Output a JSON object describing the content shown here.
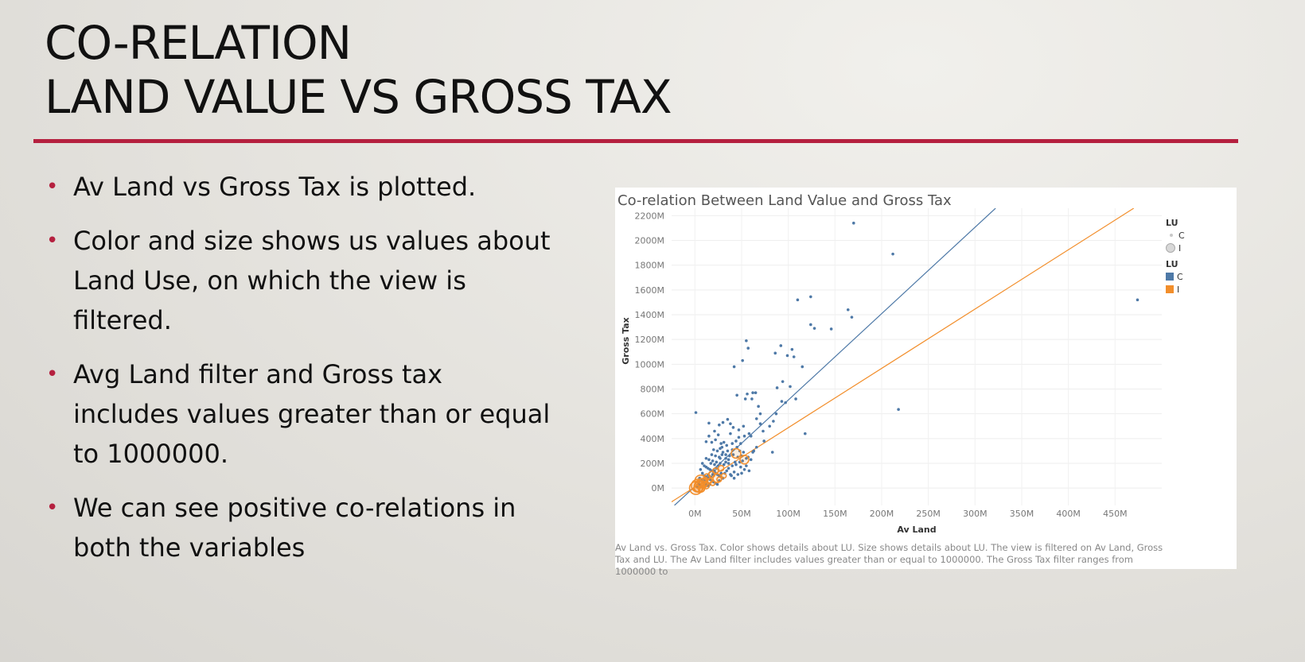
{
  "slide": {
    "title_line1": "CO-RELATION",
    "title_line2": "LAND VALUE  VS GROSS TAX",
    "accent_color": "#b5203f"
  },
  "bullets": [
    "Av Land vs Gross Tax is plotted.",
    "Color and size shows us values about Land Use, on which the view is filtered.",
    "Avg Land filter and Gross tax includes values greater than or equal to 1000000.",
    "We can see positive co-relations in both the variables"
  ],
  "chart_data": {
    "type": "scatter",
    "title": "Co-relation Between Land Value and Gross Tax",
    "xlabel": "Av Land",
    "ylabel": "Gross Tax",
    "xlim": [
      -25,
      500
    ],
    "ylim": [
      -140,
      2260
    ],
    "x_ticks": [
      "0M",
      "50M",
      "100M",
      "150M",
      "200M",
      "250M",
      "300M",
      "350M",
      "400M",
      "450M"
    ],
    "x_tick_values": [
      0,
      50,
      100,
      150,
      200,
      250,
      300,
      350,
      400,
      450
    ],
    "y_ticks": [
      "2200M",
      "2000M",
      "1800M",
      "1600M",
      "1400M",
      "1200M",
      "1000M",
      "800M",
      "600M",
      "400M",
      "200M",
      "0M"
    ],
    "y_tick_values": [
      2200,
      2000,
      1800,
      1600,
      1400,
      1200,
      1000,
      800,
      600,
      400,
      200,
      0
    ],
    "grid": true,
    "legend_position": "right",
    "legend": {
      "size_title": "LU",
      "size_items": [
        "C",
        "I"
      ],
      "color_title": "LU",
      "color_items": [
        {
          "name": "C",
          "color": "#4e79a7"
        },
        {
          "name": "I",
          "color": "#f28e2b"
        }
      ]
    },
    "series": [
      {
        "name": "C",
        "color": "#4e79a7",
        "points": [
          [
            170,
            2140
          ],
          [
            212,
            1890
          ],
          [
            474,
            1520
          ],
          [
            110,
            1520
          ],
          [
            124,
            1545
          ],
          [
            164,
            1440
          ],
          [
            168,
            1380
          ],
          [
            124,
            1320
          ],
          [
            128,
            1290
          ],
          [
            146,
            1285
          ],
          [
            55,
            1190
          ],
          [
            57,
            1130
          ],
          [
            92,
            1150
          ],
          [
            86,
            1090
          ],
          [
            104,
            1120
          ],
          [
            106,
            1060
          ],
          [
            99,
            1070
          ],
          [
            115,
            980
          ],
          [
            42,
            980
          ],
          [
            51,
            1030
          ],
          [
            94,
            860
          ],
          [
            102,
            820
          ],
          [
            88,
            810
          ],
          [
            108,
            720
          ],
          [
            97,
            690
          ],
          [
            93,
            700
          ],
          [
            45,
            750
          ],
          [
            56,
            760
          ],
          [
            62,
            770
          ],
          [
            65,
            770
          ],
          [
            54,
            720
          ],
          [
            61,
            720
          ],
          [
            68,
            660
          ],
          [
            70,
            600
          ],
          [
            87,
            600
          ],
          [
            83,
            290
          ],
          [
            118,
            440
          ],
          [
            218,
            635
          ],
          [
            1,
            610
          ],
          [
            15,
            525
          ],
          [
            30,
            530
          ],
          [
            26,
            510
          ],
          [
            35,
            555
          ],
          [
            38,
            520
          ],
          [
            41,
            490
          ],
          [
            52,
            500
          ],
          [
            47,
            470
          ],
          [
            21,
            460
          ],
          [
            25,
            430
          ],
          [
            15,
            420
          ],
          [
            12,
            375
          ],
          [
            18,
            370
          ],
          [
            22,
            390
          ],
          [
            28,
            360
          ],
          [
            31,
            370
          ],
          [
            34,
            345
          ],
          [
            40,
            360
          ],
          [
            44,
            380
          ],
          [
            49,
            360
          ],
          [
            27,
            320
          ],
          [
            20,
            310
          ],
          [
            24,
            300
          ],
          [
            30,
            290
          ],
          [
            35,
            300
          ],
          [
            40,
            310
          ],
          [
            45,
            330
          ],
          [
            48,
            300
          ],
          [
            52,
            290
          ],
          [
            18,
            270
          ],
          [
            22,
            260
          ],
          [
            26,
            250
          ],
          [
            29,
            270
          ],
          [
            33,
            240
          ],
          [
            37,
            260
          ],
          [
            41,
            270
          ],
          [
            46,
            250
          ],
          [
            50,
            260
          ],
          [
            55,
            240
          ],
          [
            12,
            240
          ],
          [
            15,
            230
          ],
          [
            19,
            220
          ],
          [
            23,
            210
          ],
          [
            27,
            200
          ],
          [
            31,
            190
          ],
          [
            36,
            200
          ],
          [
            40,
            180
          ],
          [
            44,
            190
          ],
          [
            49,
            170
          ],
          [
            53,
            150
          ],
          [
            58,
            140
          ],
          [
            8,
            200
          ],
          [
            10,
            180
          ],
          [
            12,
            170
          ],
          [
            14,
            160
          ],
          [
            16,
            150
          ],
          [
            18,
            140
          ],
          [
            20,
            130
          ],
          [
            22,
            120
          ],
          [
            24,
            110
          ],
          [
            26,
            100
          ],
          [
            28,
            90
          ],
          [
            30,
            80
          ],
          [
            32,
            120
          ],
          [
            34,
            140
          ],
          [
            36,
            160
          ],
          [
            38,
            110
          ],
          [
            42,
            130
          ],
          [
            46,
            110
          ],
          [
            50,
            120
          ],
          [
            55,
            180
          ],
          [
            60,
            230
          ],
          [
            62,
            290
          ],
          [
            39,
            100
          ],
          [
            42,
            80
          ],
          [
            6,
            150
          ],
          [
            8,
            120
          ],
          [
            10,
            100
          ],
          [
            12,
            90
          ],
          [
            14,
            80
          ],
          [
            16,
            70
          ],
          [
            18,
            60
          ],
          [
            20,
            50
          ],
          [
            22,
            40
          ],
          [
            24,
            30
          ],
          [
            26,
            60
          ],
          [
            28,
            120
          ],
          [
            5,
            80
          ],
          [
            7,
            60
          ],
          [
            9,
            40
          ],
          [
            11,
            30
          ],
          [
            13,
            50
          ],
          [
            15,
            100
          ],
          [
            17,
            90
          ],
          [
            19,
            110
          ],
          [
            21,
            140
          ],
          [
            23,
            160
          ],
          [
            25,
            180
          ],
          [
            3,
            50
          ],
          [
            4,
            30
          ],
          [
            6,
            20
          ],
          [
            2,
            10
          ],
          [
            8,
            10
          ],
          [
            10,
            60
          ],
          [
            12,
            40
          ],
          [
            14,
            20
          ],
          [
            16,
            30
          ],
          [
            33,
            270
          ],
          [
            27,
            240
          ],
          [
            21,
            190
          ],
          [
            17,
            200
          ],
          [
            29,
            330
          ],
          [
            36,
            230
          ],
          [
            43,
            210
          ],
          [
            48,
            210
          ],
          [
            51,
            220
          ],
          [
            57,
            250
          ],
          [
            63,
            300
          ],
          [
            66,
            330
          ],
          [
            74,
            380
          ],
          [
            73,
            460
          ],
          [
            58,
            440
          ],
          [
            53,
            420
          ],
          [
            47,
            410
          ],
          [
            60,
            420
          ],
          [
            80,
            500
          ],
          [
            84,
            540
          ],
          [
            66,
            560
          ],
          [
            70,
            520
          ],
          [
            38,
            440
          ],
          [
            33,
            210
          ]
        ]
      },
      {
        "name": "I",
        "color": "#f28e2b",
        "points": [
          [
            6,
            60,
            14
          ],
          [
            3,
            20,
            16
          ],
          [
            1,
            0,
            16
          ],
          [
            8,
            40,
            12
          ],
          [
            5,
            10,
            14
          ],
          [
            4,
            30,
            10
          ],
          [
            10,
            30,
            8
          ],
          [
            12,
            20,
            8
          ],
          [
            2,
            -5,
            8
          ],
          [
            7,
            -5,
            8
          ],
          [
            44,
            280,
            12
          ],
          [
            53,
            230,
            11
          ],
          [
            24,
            80,
            11
          ],
          [
            13,
            90,
            8
          ],
          [
            18,
            110,
            8
          ],
          [
            22,
            140,
            7
          ],
          [
            28,
            160,
            7
          ],
          [
            16,
            60,
            6
          ],
          [
            11,
            70,
            6
          ],
          [
            19,
            40,
            6
          ],
          [
            26,
            70,
            6
          ],
          [
            31,
            100,
            6
          ]
        ]
      }
    ],
    "trend_lines": [
      {
        "name": "C",
        "color": "#4e79a7",
        "from": [
          -22,
          -140
        ],
        "to": [
          322,
          2260
        ]
      },
      {
        "name": "I",
        "color": "#f28e2b",
        "from": [
          -28,
          -125
        ],
        "to": [
          470,
          2260
        ]
      }
    ],
    "caption": "Av Land vs. Gross Tax.  Color shows details about LU.  Size shows details about LU. The view is filtered on Av Land, Gross Tax and LU. The Av Land filter includes values greater than or equal to 1000000. The Gross Tax filter ranges from 1000000 to"
  }
}
